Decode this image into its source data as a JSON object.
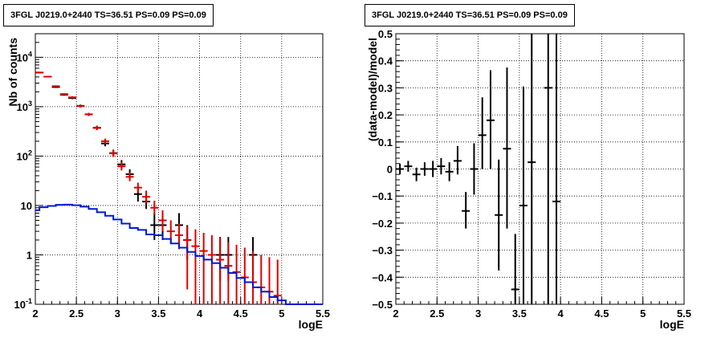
{
  "chart_data": [
    {
      "type": "histogram",
      "title": "3FGL J0219.0+2440 TS=36.51 PS=0.09 PS=0.09",
      "xlabel": "logE",
      "ylabel": "Nb of counts",
      "xlim": [
        2,
        5.5
      ],
      "ylim": [
        0.1,
        30000
      ],
      "yscale": "log",
      "grid": true,
      "x_ticks": [
        "2",
        "2.5",
        "3",
        "3.5",
        "4",
        "4.5",
        "5",
        "5.5"
      ],
      "y_ticks": [
        "10<sup>-1</sup>",
        "1",
        "10",
        "10<sup>2</sup>",
        "10<sup>3</sup>",
        "10<sup>4</sup>"
      ],
      "y_tick_values": [
        0.1,
        1,
        10,
        100,
        1000,
        10000
      ],
      "series": [
        {
          "color": "#000000",
          "style": "points-errorbars",
          "points": [
            {
              "x": 2.05,
              "y": 4900,
              "lo": 4760,
              "hi": 5040
            },
            {
              "x": 2.15,
              "y": 4050,
              "lo": 3920,
              "hi": 4180
            },
            {
              "x": 2.25,
              "y": 2500,
              "lo": 2400,
              "hi": 2600
            },
            {
              "x": 2.35,
              "y": 1750,
              "lo": 1670,
              "hi": 1830
            },
            {
              "x": 2.45,
              "y": 1500,
              "lo": 1420,
              "hi": 1580
            },
            {
              "x": 2.55,
              "y": 1040,
              "lo": 975,
              "hi": 1105
            },
            {
              "x": 2.65,
              "y": 700,
              "lo": 650,
              "hi": 750
            },
            {
              "x": 2.75,
              "y": 375,
              "lo": 340,
              "hi": 412
            },
            {
              "x": 2.85,
              "y": 180,
              "lo": 158,
              "hi": 205
            },
            {
              "x": 2.95,
              "y": 115,
              "lo": 98,
              "hi": 135
            },
            {
              "x": 3.05,
              "y": 68,
              "lo": 56,
              "hi": 83
            },
            {
              "x": 3.15,
              "y": 43,
              "lo": 35,
              "hi": 54
            },
            {
              "x": 3.25,
              "y": 17,
              "lo": 12,
              "hi": 23
            },
            {
              "x": 3.35,
              "y": 12,
              "lo": 8.5,
              "hi": 17
            },
            {
              "x": 3.45,
              "y": 4,
              "lo": 2,
              "hi": 7
            },
            {
              "x": 3.55,
              "y": 4,
              "lo": 2,
              "hi": 7
            },
            {
              "x": 3.75,
              "y": 4,
              "lo": 2,
              "hi": 7
            },
            {
              "x": 3.85,
              "y": 2,
              "lo": 0.8,
              "hi": 4
            },
            {
              "x": 4.25,
              "y": 1,
              "lo": 0.3,
              "hi": 2.3
            },
            {
              "x": 4.35,
              "y": 1,
              "lo": 0.3,
              "hi": 2.3
            },
            {
              "x": 4.65,
              "y": 1,
              "lo": 0.3,
              "hi": 2.3
            }
          ]
        },
        {
          "color": "#e00000",
          "style": "points-errorbars",
          "points": [
            {
              "x": 2.05,
              "y": 4900,
              "lo": 4760,
              "hi": 5040
            },
            {
              "x": 2.15,
              "y": 4050,
              "lo": 3920,
              "hi": 4180
            },
            {
              "x": 2.25,
              "y": 2600,
              "lo": 2500,
              "hi": 2700
            },
            {
              "x": 2.35,
              "y": 1800,
              "lo": 1720,
              "hi": 1880
            },
            {
              "x": 2.45,
              "y": 1550,
              "lo": 1470,
              "hi": 1630
            },
            {
              "x": 2.55,
              "y": 1030,
              "lo": 965,
              "hi": 1095
            },
            {
              "x": 2.65,
              "y": 700,
              "lo": 650,
              "hi": 750
            },
            {
              "x": 2.75,
              "y": 370,
              "lo": 335,
              "hi": 405
            },
            {
              "x": 2.85,
              "y": 200,
              "lo": 176,
              "hi": 226
            },
            {
              "x": 2.95,
              "y": 113,
              "lo": 96,
              "hi": 132
            },
            {
              "x": 3.05,
              "y": 62,
              "lo": 51,
              "hi": 75
            },
            {
              "x": 3.15,
              "y": 38,
              "lo": 31,
              "hi": 47
            },
            {
              "x": 3.25,
              "y": 23,
              "lo": 18,
              "hi": 29
            },
            {
              "x": 3.35,
              "y": 15,
              "lo": 11,
              "hi": 20
            },
            {
              "x": 3.45,
              "y": 9,
              "lo": 6.5,
              "hi": 12.5
            },
            {
              "x": 3.55,
              "y": 5,
              "lo": 3,
              "hi": 8
            },
            {
              "x": 3.65,
              "y": 3,
              "lo": 1.7,
              "hi": 5
            },
            {
              "x": 3.75,
              "y": 2.5,
              "lo": 1.3,
              "hi": 4.3
            },
            {
              "x": 3.85,
              "y": 2,
              "lo": 0.2,
              "hi": 3.8
            },
            {
              "x": 3.95,
              "y": 1.5,
              "lo": 0.1,
              "hi": 3.3
            },
            {
              "x": 4.05,
              "y": 1.2,
              "lo": 0.1,
              "hi": 2.8
            },
            {
              "x": 4.15,
              "y": 1.0,
              "lo": 0.1,
              "hi": 2.5
            },
            {
              "x": 4.25,
              "y": 0.8,
              "lo": 0.1,
              "hi": 2.2
            },
            {
              "x": 4.35,
              "y": 0.6,
              "lo": 0.1,
              "hi": 1.8
            },
            {
              "x": 4.45,
              "y": 0.45,
              "lo": 0.1,
              "hi": 1.6
            },
            {
              "x": 4.55,
              "y": 0.35,
              "lo": 0.1,
              "hi": 1.4
            },
            {
              "x": 4.65,
              "y": 0.28,
              "lo": 0.1,
              "hi": 1.2
            },
            {
              "x": 4.75,
              "y": 0.22,
              "lo": 0.1,
              "hi": 1.0
            },
            {
              "x": 4.85,
              "y": 0.18,
              "lo": 0.1,
              "hi": 0.9
            },
            {
              "x": 4.95,
              "y": 0.15,
              "lo": 0.1,
              "hi": 0.8
            }
          ]
        },
        {
          "color": "#0018d8",
          "style": "step",
          "bin_edges": [
            1.95,
            2.05,
            2.15,
            2.25,
            2.35,
            2.45,
            2.55,
            2.65,
            2.75,
            2.85,
            2.95,
            3.05,
            3.15,
            3.25,
            3.35,
            3.45,
            3.55,
            3.65,
            3.75,
            3.85,
            3.95,
            4.05,
            4.15,
            4.25,
            4.35,
            4.45,
            4.55,
            4.65,
            4.75,
            4.85,
            4.95,
            5.05,
            5.15,
            5.25,
            5.35,
            5.5
          ],
          "values": [
            8.0,
            9.2,
            9.8,
            10.3,
            10.4,
            10.1,
            9.5,
            8.5,
            7.3,
            6.2,
            5.2,
            4.3,
            3.5,
            3.2,
            2.6,
            2.5,
            2.1,
            1.7,
            1.4,
            1.15,
            0.95,
            0.8,
            0.68,
            0.55,
            0.43,
            0.34,
            0.28,
            0.22,
            0.18,
            0.14,
            0.12,
            0.1,
            0.1,
            0.1,
            0.1
          ]
        }
      ]
    },
    {
      "type": "scatter",
      "title": "3FGL J0219.0+2440 TS=36.51 PS=0.09 PS=0.09",
      "xlabel": "logE",
      "ylabel": "(data-model)/model",
      "xlim": [
        2,
        5.5
      ],
      "ylim": [
        -0.5,
        0.5
      ],
      "grid": true,
      "x_ticks": [
        "2",
        "2.5",
        "3",
        "3.5",
        "4",
        "4.5",
        "5",
        "5.5"
      ],
      "y_ticks": [
        "−0.5",
        "−0.4",
        "−0.3",
        "−0.2",
        "−0.1",
        "0",
        "0.1",
        "0.2",
        "0.3",
        "0.4",
        "0.5"
      ],
      "y_tick_values": [
        -0.5,
        -0.4,
        -0.3,
        -0.2,
        -0.1,
        0,
        0.1,
        0.2,
        0.3,
        0.4,
        0.5
      ],
      "series": [
        {
          "color": "#000000",
          "style": "points-errorbars",
          "points": [
            {
              "x": 2.05,
              "y": 0.0,
              "lo": -0.02,
              "hi": 0.02
            },
            {
              "x": 2.15,
              "y": 0.01,
              "lo": -0.01,
              "hi": 0.03
            },
            {
              "x": 2.25,
              "y": -0.02,
              "lo": -0.045,
              "hi": 0.005
            },
            {
              "x": 2.35,
              "y": 0.0,
              "lo": -0.025,
              "hi": 0.025
            },
            {
              "x": 2.45,
              "y": 0.0,
              "lo": -0.03,
              "hi": 0.03
            },
            {
              "x": 2.55,
              "y": 0.01,
              "lo": -0.02,
              "hi": 0.04
            },
            {
              "x": 2.65,
              "y": -0.01,
              "lo": -0.045,
              "hi": 0.025
            },
            {
              "x": 2.75,
              "y": 0.03,
              "lo": -0.02,
              "hi": 0.085
            },
            {
              "x": 2.85,
              "y": -0.155,
              "lo": -0.22,
              "hi": -0.085
            },
            {
              "x": 2.95,
              "y": 0.0,
              "lo": -0.095,
              "hi": 0.095
            },
            {
              "x": 3.05,
              "y": 0.125,
              "lo": 0.0,
              "hi": 0.265
            },
            {
              "x": 3.15,
              "y": 0.18,
              "lo": 0.0,
              "hi": 0.365
            },
            {
              "x": 3.25,
              "y": -0.17,
              "lo": -0.375,
              "hi": 0.035
            },
            {
              "x": 3.35,
              "y": 0.075,
              "lo": -0.22,
              "hi": 0.375
            },
            {
              "x": 3.45,
              "y": -0.445,
              "lo": -0.5,
              "hi": -0.24
            },
            {
              "x": 3.55,
              "y": -0.135,
              "lo": -0.5,
              "hi": 0.305
            },
            {
              "x": 3.65,
              "y": 0.025,
              "lo": -0.5,
              "hi": 0.5
            },
            {
              "x": 3.85,
              "y": 0.3,
              "lo": -0.5,
              "hi": 0.5
            },
            {
              "x": 3.95,
              "y": -0.12,
              "lo": -0.5,
              "hi": 0.5
            }
          ]
        }
      ]
    }
  ]
}
